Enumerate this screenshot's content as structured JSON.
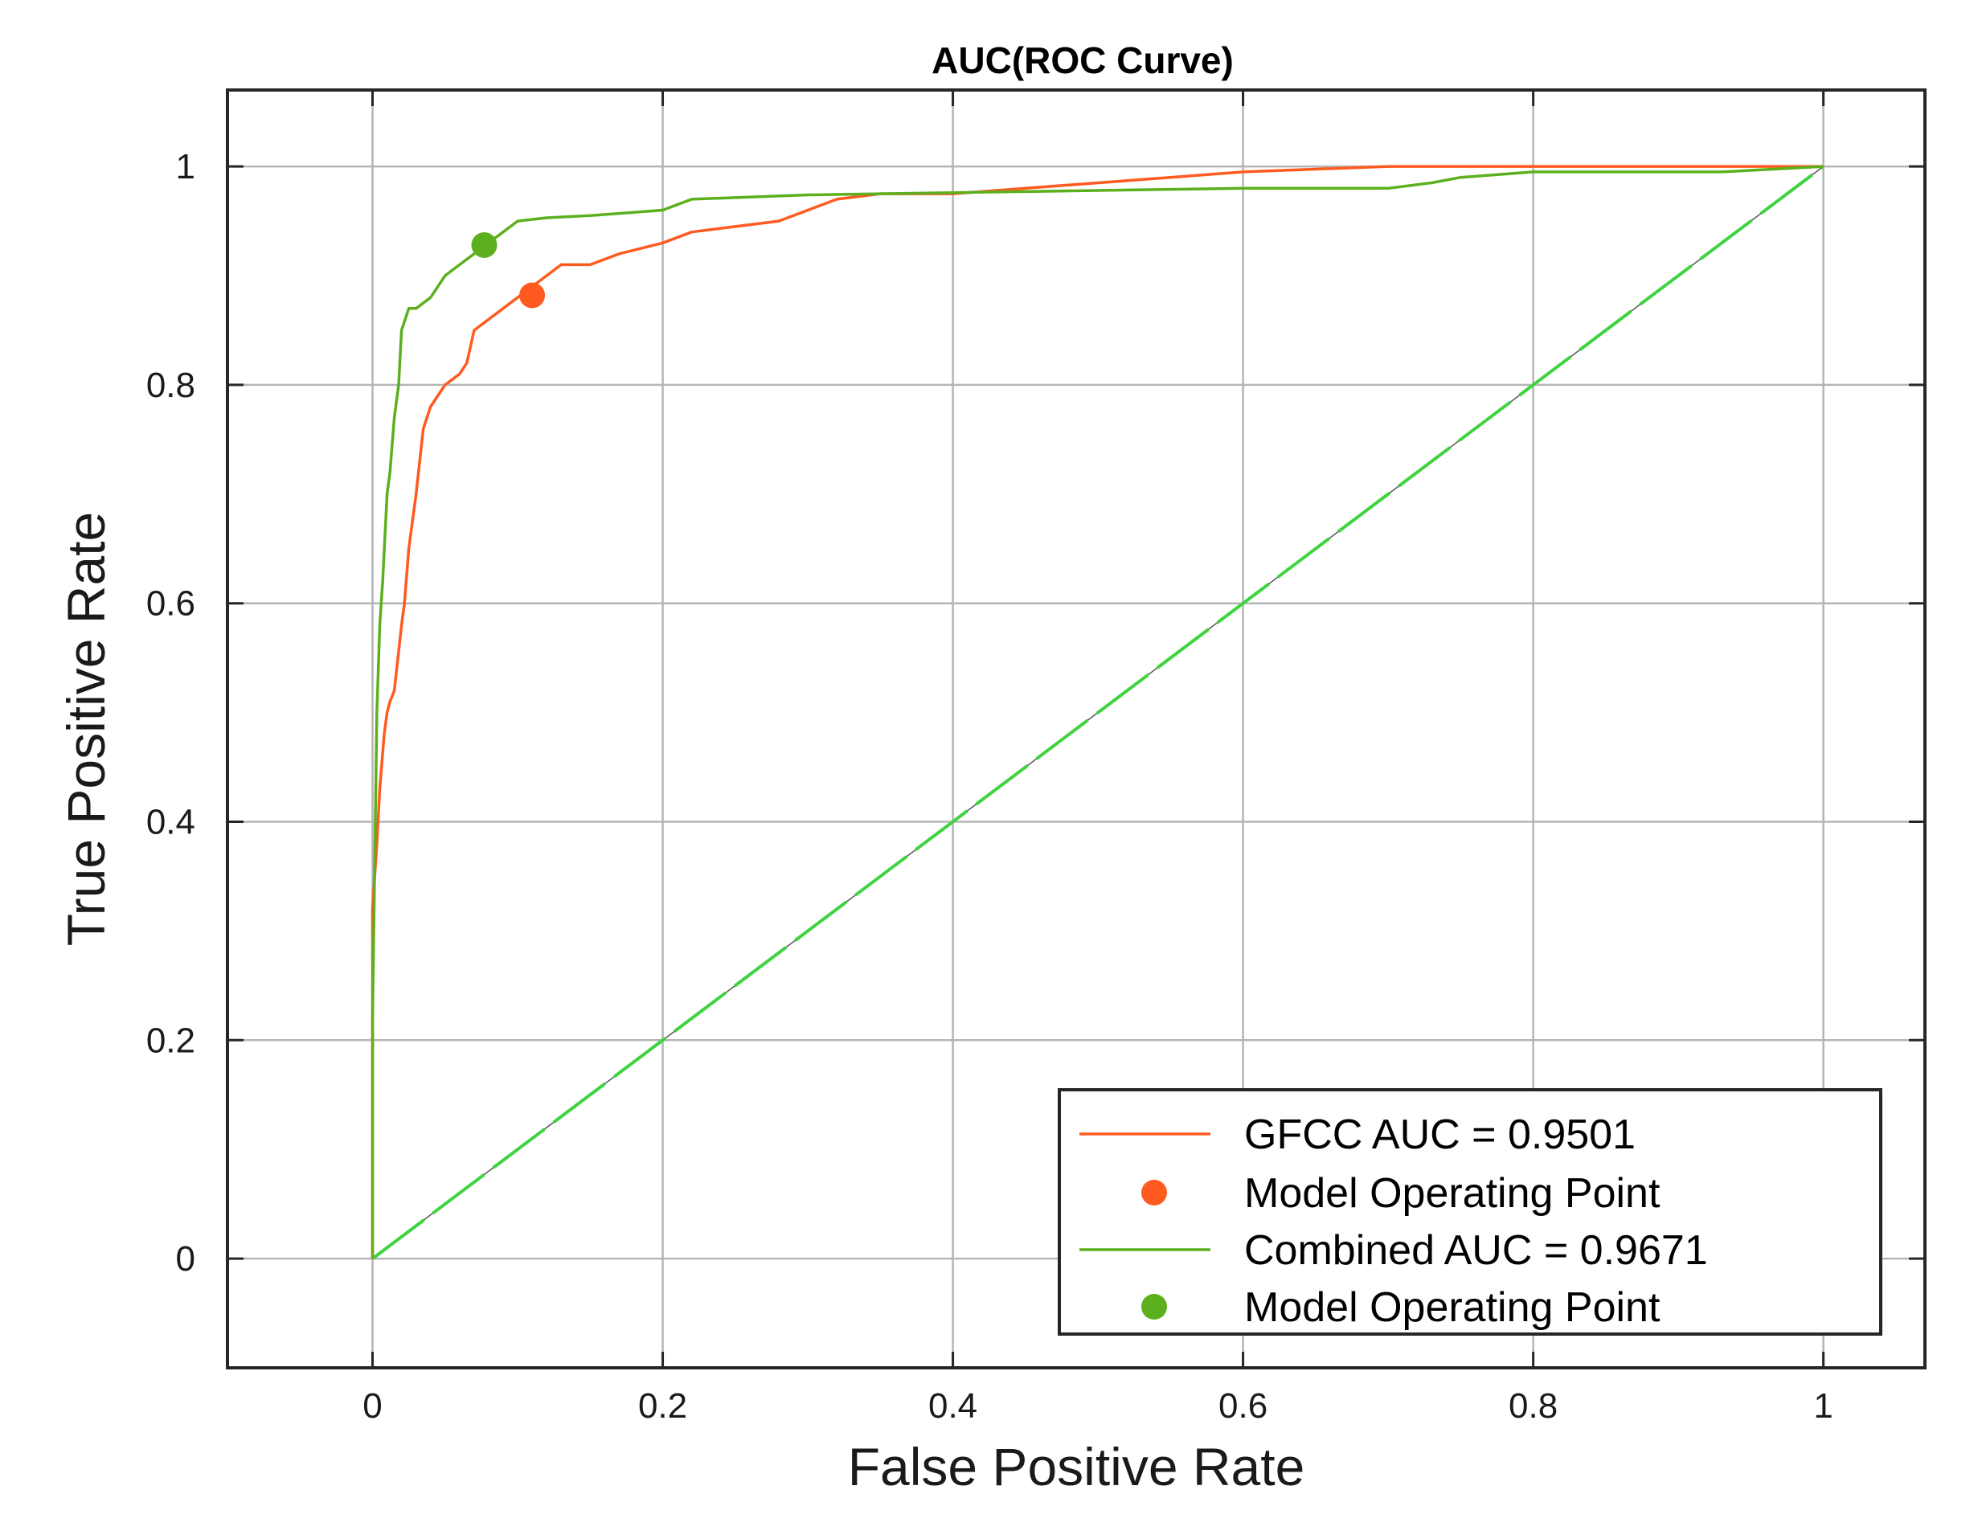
{
  "chart_data": {
    "type": "line",
    "title": "AUC(ROC Curve)",
    "xlabel": "False Positive Rate",
    "ylabel": "True Positive Rate",
    "xlim": [
      -0.1,
      1.07
    ],
    "ylim": [
      -0.1,
      1.07
    ],
    "xticks": [
      0,
      0.2,
      0.4,
      0.6,
      0.8,
      1
    ],
    "yticks": [
      0,
      0.2,
      0.4,
      0.6,
      0.8,
      1
    ],
    "xtick_labels": [
      "0",
      "0.2",
      "0.4",
      "0.6",
      "0.8",
      "1"
    ],
    "ytick_labels": [
      "0",
      "0.2",
      "0.4",
      "0.6",
      "0.8",
      "1"
    ],
    "grid": true,
    "legend_position": "bottom-right",
    "colors": {
      "gfcc": "#ff5a1f",
      "combined": "#5cb01e",
      "chance": "#3fd43f",
      "grid": "#b5b5b5",
      "axes": "#262626"
    },
    "series": [
      {
        "name": "GFCC AUC = 0.9501",
        "kind": "roc",
        "x": [
          0,
          0,
          0,
          0.003,
          0.005,
          0.008,
          0.01,
          0.012,
          0.015,
          0.02,
          0.022,
          0.025,
          0.03,
          0.035,
          0.04,
          0.045,
          0.05,
          0.06,
          0.065,
          0.07,
          0.08,
          0.09,
          0.1,
          0.11,
          0.12,
          0.13,
          0.15,
          0.17,
          0.2,
          0.22,
          0.25,
          0.28,
          0.3,
          0.32,
          0.35,
          0.4,
          0.45,
          0.5,
          0.55,
          0.6,
          0.7,
          0.8,
          0.9,
          1
        ],
        "y": [
          0,
          0.22,
          0.32,
          0.38,
          0.43,
          0.48,
          0.5,
          0.51,
          0.52,
          0.58,
          0.6,
          0.65,
          0.7,
          0.76,
          0.78,
          0.79,
          0.8,
          0.81,
          0.82,
          0.85,
          0.86,
          0.87,
          0.88,
          0.89,
          0.9,
          0.91,
          0.91,
          0.92,
          0.93,
          0.94,
          0.945,
          0.95,
          0.96,
          0.97,
          0.975,
          0.975,
          0.98,
          0.985,
          0.99,
          0.995,
          1,
          1,
          1,
          1
        ]
      },
      {
        "name": "Model Operating Point",
        "kind": "point",
        "x": [
          0.11
        ],
        "y": [
          0.882
        ]
      },
      {
        "name": "Combined AUC = 0.9671",
        "kind": "roc",
        "x": [
          0,
          0,
          0.003,
          0.005,
          0.007,
          0.01,
          0.012,
          0.015,
          0.018,
          0.02,
          0.025,
          0.03,
          0.04,
          0.05,
          0.06,
          0.07,
          0.08,
          0.09,
          0.1,
          0.12,
          0.15,
          0.2,
          0.22,
          0.3,
          0.4,
          0.5,
          0.6,
          0.7,
          0.73,
          0.75,
          0.8,
          0.93,
          1
        ],
        "y": [
          0,
          0.22,
          0.5,
          0.58,
          0.62,
          0.7,
          0.72,
          0.77,
          0.8,
          0.85,
          0.87,
          0.87,
          0.88,
          0.9,
          0.91,
          0.92,
          0.93,
          0.94,
          0.95,
          0.953,
          0.955,
          0.96,
          0.97,
          0.974,
          0.976,
          0.978,
          0.98,
          0.98,
          0.985,
          0.99,
          0.995,
          0.995,
          1
        ]
      },
      {
        "name": "Model Operating Point",
        "kind": "point",
        "x": [
          0.077
        ],
        "y": [
          0.928
        ]
      },
      {
        "kind": "chance",
        "x": [
          0,
          1
        ],
        "y": [
          0,
          1
        ]
      }
    ],
    "legend": [
      {
        "label": "GFCC AUC = 0.9501",
        "marker": "line",
        "color_key": "gfcc"
      },
      {
        "label": "Model Operating Point",
        "marker": "dot",
        "color_key": "gfcc"
      },
      {
        "label": "Combined AUC = 0.9671",
        "marker": "line",
        "color_key": "combined"
      },
      {
        "label": "Model Operating Point",
        "marker": "dot",
        "color_key": "combined"
      }
    ]
  }
}
